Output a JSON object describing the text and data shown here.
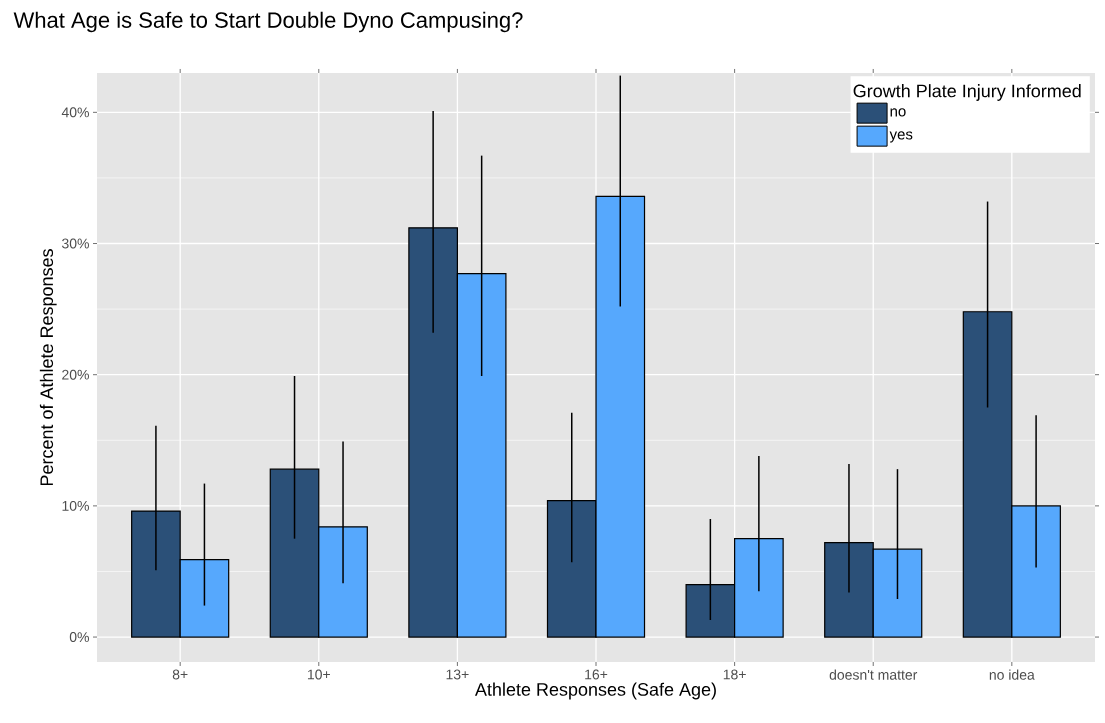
{
  "chart_data": {
    "type": "bar",
    "title": "What Age is Safe to Start Double Dyno Campusing?",
    "xlabel": "Athlete Responses (Safe Age)",
    "ylabel": "Percent of Athlete Responses",
    "legend_title": "Growth Plate Injury Informed",
    "categories": [
      "8+",
      "10+",
      "13+",
      "16+",
      "18+",
      "doesn't matter",
      "no idea"
    ],
    "series": [
      {
        "name": "no",
        "color": "#2b5078",
        "values": [
          9.6,
          12.8,
          31.2,
          10.4,
          4.0,
          7.2,
          24.8
        ],
        "errors": [
          [
            5.1,
            16.1
          ],
          [
            7.5,
            19.9
          ],
          [
            23.2,
            40.1
          ],
          [
            5.7,
            17.1
          ],
          [
            1.3,
            9.0
          ],
          [
            3.4,
            13.2
          ],
          [
            17.5,
            33.2
          ]
        ]
      },
      {
        "name": "yes",
        "color": "#56a8fd",
        "values": [
          5.9,
          8.4,
          27.7,
          33.6,
          7.5,
          6.7,
          10.0
        ],
        "errors": [
          [
            2.4,
            11.7
          ],
          [
            4.1,
            14.9
          ],
          [
            19.9,
            36.7
          ],
          [
            25.2,
            42.8
          ],
          [
            3.5,
            13.8
          ],
          [
            2.9,
            12.8
          ],
          [
            5.3,
            16.9
          ]
        ]
      }
    ],
    "ylim": [
      -1.9,
      43.0
    ],
    "yticks": [
      {
        "value": 0,
        "label": "0%"
      },
      {
        "value": 10,
        "label": "10%"
      },
      {
        "value": 20,
        "label": "20%"
      },
      {
        "value": 30,
        "label": "30%"
      },
      {
        "value": 40,
        "label": "40%"
      }
    ],
    "grid": true,
    "legend": "top right"
  }
}
